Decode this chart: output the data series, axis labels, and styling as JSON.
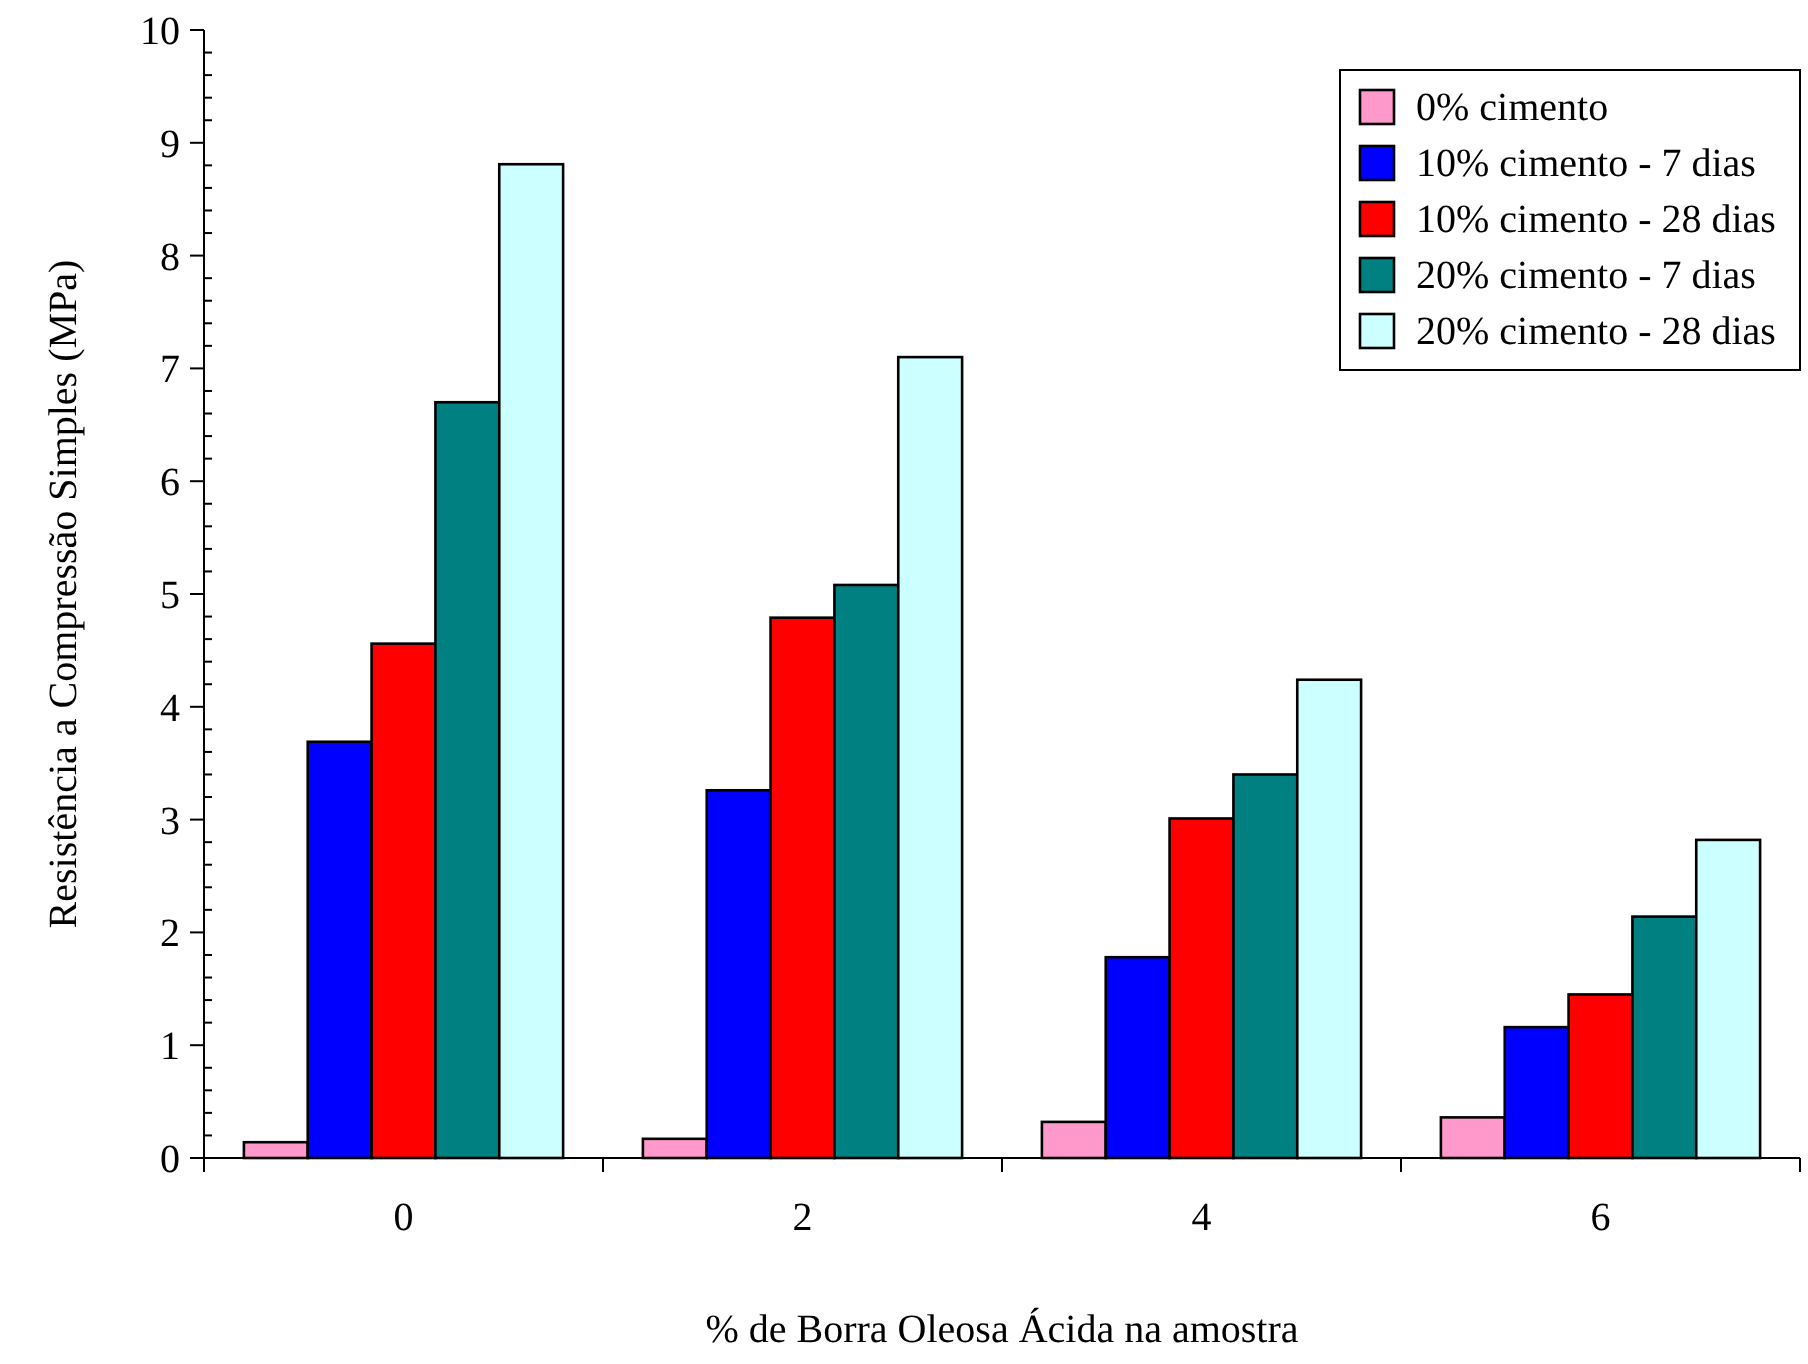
{
  "chart_data": {
    "type": "bar",
    "xlabel": "% de Borra Oleosa Ácida na amostra",
    "ylabel": "Resistência a Compressão Simples (MPa)",
    "categories": [
      "0",
      "2",
      "4",
      "6"
    ],
    "series": [
      {
        "name": "0% cimento",
        "color": "#ff99cc",
        "values": [
          0.14,
          0.17,
          0.32,
          0.36
        ]
      },
      {
        "name": "10% cimento - 7 dias",
        "color": "#0000ff",
        "values": [
          3.69,
          3.26,
          1.78,
          1.16
        ]
      },
      {
        "name": "10% cimento - 28 dias",
        "color": "#ff0000",
        "values": [
          4.56,
          4.79,
          3.01,
          1.45
        ]
      },
      {
        "name": "20% cimento - 7 dias",
        "color": "#008080",
        "values": [
          6.7,
          5.08,
          3.4,
          2.14
        ]
      },
      {
        "name": "20% cimento - 28 dias",
        "color": "#ccffff",
        "values": [
          8.81,
          7.1,
          4.24,
          2.82
        ]
      }
    ],
    "ylim": [
      0,
      10
    ],
    "yticks": [
      0,
      1,
      2,
      3,
      4,
      5,
      6,
      7,
      8,
      9,
      10
    ],
    "grid": false,
    "legend": "top right"
  }
}
